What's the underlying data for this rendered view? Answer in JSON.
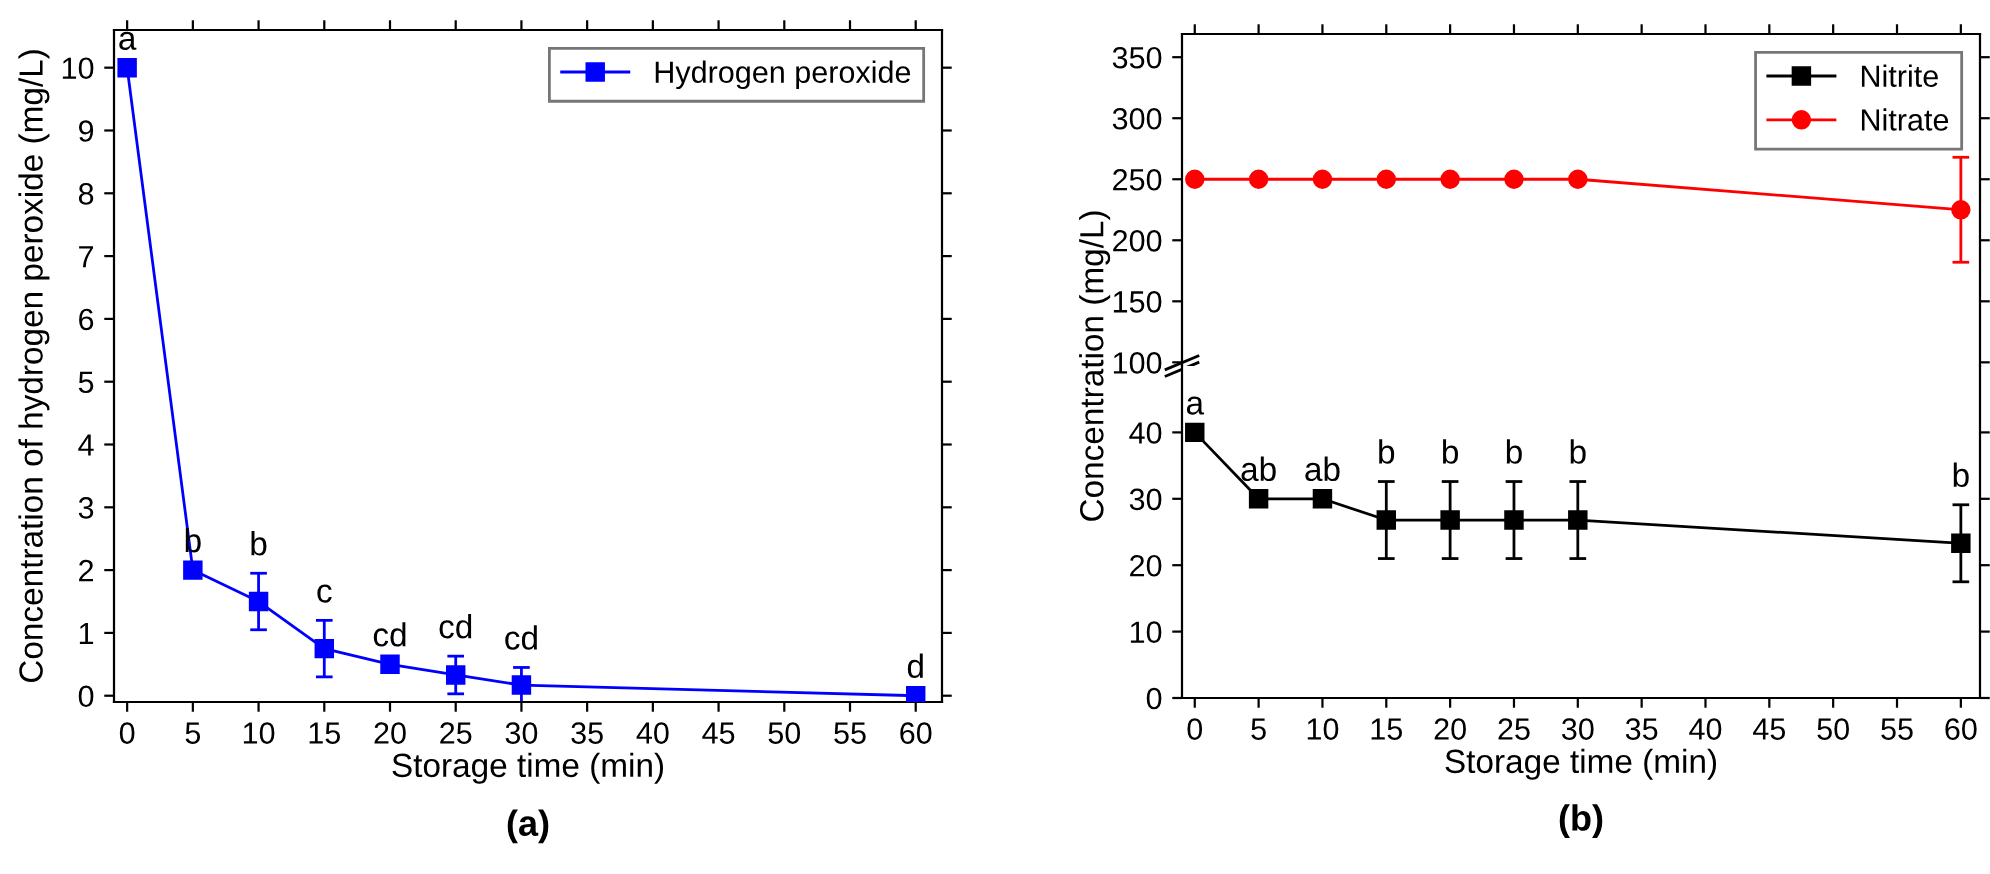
{
  "chart_data": [
    {
      "type": "line",
      "xlabel": "Storage time (min)",
      "ylabel": "Concentration of hydrogen peroxide (mg/L)",
      "x": [
        0,
        5,
        10,
        15,
        20,
        25,
        30,
        60
      ],
      "series": [
        {
          "name": "Hydrogen peroxide",
          "color": "#0000ff",
          "values": [
            10.0,
            2.0,
            1.5,
            0.75,
            0.5,
            0.33,
            0.17,
            0.0
          ],
          "errors": [
            null,
            null,
            0.45,
            0.45,
            null,
            0.3,
            0.28,
            null
          ]
        }
      ],
      "xlim": [
        -1,
        62
      ],
      "xticks": [
        0,
        5,
        10,
        15,
        20,
        25,
        30,
        35,
        40,
        45,
        50,
        55,
        60
      ],
      "ylim": [
        -0.1,
        10.6
      ],
      "yticks": [
        0,
        1,
        2,
        3,
        4,
        5,
        6,
        7,
        8,
        9,
        10
      ],
      "marker": "square",
      "line_style": "solid",
      "grid": false,
      "legend": "top right",
      "annotations": [
        {
          "text": "a",
          "x": 0,
          "y": 10.0
        },
        {
          "text": "b",
          "x": 5,
          "y": 2.0
        },
        {
          "text": "b",
          "x": 10,
          "y": 1.5
        },
        {
          "text": "c",
          "x": 15,
          "y": 0.75
        },
        {
          "text": "cd",
          "x": 20,
          "y": 0.5
        },
        {
          "text": "cd",
          "x": 25,
          "y": 0.33
        },
        {
          "text": "cd",
          "x": 30,
          "y": 0.17
        },
        {
          "text": "d",
          "x": 60,
          "y": 0.0
        },
        "(a)"
      ]
    },
    {
      "type": "line",
      "ylabel": "Concentration (mg/L)",
      "x": [
        0,
        5,
        10,
        15,
        20,
        25,
        30,
        60
      ],
      "series": [
        {
          "name": "Nitrate",
          "color": "#ff0000",
          "values": [
            250,
            250,
            250,
            250,
            250,
            250,
            250,
            225
          ],
          "errors": [
            null,
            null,
            null,
            null,
            null,
            null,
            null,
            43
          ]
        }
      ],
      "xlim": [
        -1,
        61.5
      ],
      "xticks": [
        0,
        5,
        10,
        15,
        20,
        25,
        30,
        35,
        40,
        45,
        50,
        55,
        60
      ],
      "ylim": [
        97,
        369
      ],
      "yticks": [
        100,
        150,
        200,
        250,
        300,
        350
      ],
      "marker": "circle",
      "line_style": "solid",
      "grid": false,
      "legend": "top right",
      "tick_labels": "y"
    },
    {
      "type": "line",
      "xlabel": "Storage time (min)",
      "x": [
        0,
        5,
        10,
        15,
        20,
        25,
        30,
        60
      ],
      "series": [
        {
          "name": "Nitrite",
          "color": "#000000",
          "values": [
            40,
            30,
            30,
            26.8,
            26.8,
            26.8,
            26.8,
            23.3
          ],
          "errors": [
            null,
            null,
            null,
            5.8,
            5.8,
            5.8,
            5.8,
            5.8
          ]
        }
      ],
      "xlim": [
        -1,
        61.5
      ],
      "xticks": [
        0,
        5,
        10,
        15,
        20,
        25,
        30,
        35,
        40,
        45,
        50,
        55,
        60
      ],
      "ylim": [
        0,
        50
      ],
      "yticks": [
        0,
        10,
        20,
        30,
        40
      ],
      "marker": "square",
      "line_style": "solid",
      "grid": false,
      "annotations": [
        {
          "text": "a",
          "x": 0,
          "y": 40
        },
        {
          "text": "ab",
          "x": 5,
          "y": 30
        },
        {
          "text": "ab",
          "x": 10,
          "y": 30
        },
        {
          "text": "b",
          "x": 15,
          "y": 26.8
        },
        {
          "text": "b",
          "x": 20,
          "y": 26.8
        },
        {
          "text": "b",
          "x": 25,
          "y": 26.8
        },
        {
          "text": "b",
          "x": 30,
          "y": 26.8
        },
        {
          "text": "b",
          "x": 60,
          "y": 23.3
        },
        "(b)"
      ]
    }
  ]
}
